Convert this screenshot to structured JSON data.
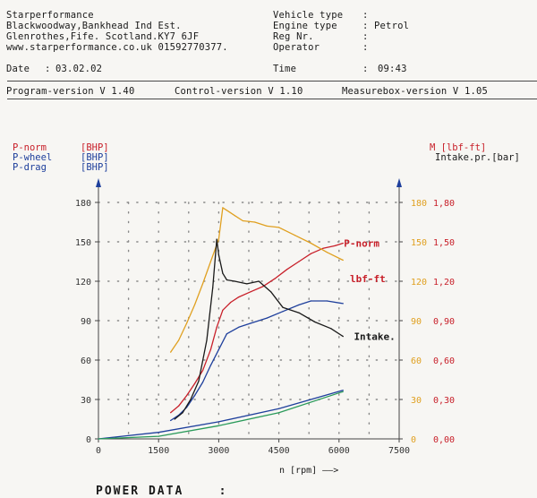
{
  "header": {
    "company": "Starperformance",
    "address": "Blackwoodway,Bankhead Ind Est.",
    "city": "Glenrothes,Fife. Scotland.KY7 6JF",
    "web_phone": "www.starperformance.co.uk 01592770377.",
    "date_label": "Date",
    "date_value": "03.02.02",
    "vehicle_type_label": "Vehicle type",
    "vehicle_type_value": "",
    "engine_type_label": "Engine type",
    "engine_type_value": "Petrol",
    "reg_label": "Reg Nr.",
    "reg_value": "",
    "operator_label": "Operator",
    "operator_value": "",
    "time_label": "Time",
    "time_value": "09:43"
  },
  "versions": {
    "program": "Program-version V 1.40",
    "control": "Control-version V 1.10",
    "measurebox": "Measurebox-version V 1.05"
  },
  "legend_left": [
    {
      "name": "P-norm",
      "unit": "[BHP]",
      "color": "#c8202a"
    },
    {
      "name": "P-wheel",
      "unit": "[BHP]",
      "color": "#1e3f9c"
    },
    {
      "name": "P-drag",
      "unit": "[BHP]",
      "color": "#1e3f9c"
    }
  ],
  "legend_right": [
    {
      "name": "M [lbf-ft]",
      "color": "#c8202a"
    },
    {
      "name": "Intake.pr.[bar]",
      "color": "#1a1a1a"
    }
  ],
  "footer": {
    "title": "POWER DATA",
    "colon": ":"
  },
  "colors": {
    "red": "#c8202a",
    "blue": "#1e3f9c",
    "orange": "#e0a020",
    "black": "#1a1a1a",
    "green": "#2a9a5a"
  },
  "chart_data": {
    "type": "line",
    "xlabel": "n [rpm] ——>",
    "xlim": [
      0,
      7500
    ],
    "x_ticks": [
      0,
      1500,
      3000,
      4500,
      6000,
      7500
    ],
    "ylim_left": [
      0,
      180
    ],
    "y_ticks_left": [
      0,
      30,
      60,
      90,
      120,
      150,
      180
    ],
    "y_ticks_right_torque": [
      0,
      30,
      60,
      90,
      120,
      150,
      180
    ],
    "y_ticks_right_intake": [
      "0,00",
      "0,30",
      "0,60",
      "0,90",
      "1,20",
      "1,50",
      "1,80"
    ],
    "grid": true,
    "annotations": [
      {
        "text": "P-norm",
        "x": 6300,
        "y": 149,
        "color": "#c8202a"
      },
      {
        "text": "lbf-ft",
        "x": 6450,
        "y": 122,
        "color": "#c8202a"
      },
      {
        "text": "Intake.",
        "x": 6550,
        "y": 78,
        "color": "#1a1a1a"
      }
    ],
    "series": [
      {
        "name": "P-norm",
        "axis": "left",
        "color": "#c8202a",
        "x": [
          1800,
          2000,
          2200,
          2400,
          2600,
          2800,
          2950,
          3100,
          3300,
          3500,
          3800,
          4100,
          4400,
          4700,
          5000,
          5300,
          5600,
          5900,
          6100
        ],
        "y": [
          20,
          25,
          33,
          42,
          52,
          68,
          85,
          98,
          104,
          108,
          112,
          116,
          122,
          129,
          135,
          141,
          145,
          147,
          149
        ]
      },
      {
        "name": "P-wheel",
        "axis": "left",
        "color": "#1e3f9c",
        "x": [
          1800,
          2000,
          2200,
          2400,
          2600,
          2800,
          3000,
          3200,
          3500,
          3800,
          4200,
          4600,
          5000,
          5300,
          5700,
          6100
        ],
        "y": [
          14,
          18,
          24,
          33,
          43,
          56,
          68,
          80,
          85,
          88,
          92,
          97,
          102,
          105,
          105,
          103
        ]
      },
      {
        "name": "P-drag",
        "axis": "left",
        "color": "#1e3f9c",
        "x": [
          0,
          1500,
          3000,
          4500,
          6100
        ],
        "y": [
          0,
          5,
          13,
          23,
          37
        ]
      },
      {
        "name": "M",
        "axis": "right",
        "color": "#e0a020",
        "x": [
          1800,
          2000,
          2200,
          2400,
          2600,
          2800,
          3000,
          3100,
          3200,
          3400,
          3600,
          3900,
          4200,
          4500,
          4900,
          5300,
          5700,
          6100
        ],
        "y": [
          66,
          75,
          88,
          102,
          118,
          135,
          152,
          176,
          174,
          170,
          166,
          165,
          162,
          161,
          155,
          149,
          142,
          136
        ]
      },
      {
        "name": "Intake",
        "axis": "right",
        "color": "#1a1a1a",
        "x": [
          1900,
          2100,
          2300,
          2500,
          2700,
          2850,
          2950,
          3000,
          3100,
          3200,
          3400,
          3700,
          4000,
          4300,
          4600,
          5000,
          5400,
          5800,
          6100
        ],
        "y": [
          15,
          20,
          30,
          44,
          75,
          115,
          152,
          140,
          126,
          121,
          120,
          118,
          120,
          112,
          100,
          96,
          89,
          84,
          78
        ]
      },
      {
        "name": "green",
        "axis": "left",
        "color": "#2a9a5a",
        "x": [
          0,
          1500,
          3000,
          4500,
          6100
        ],
        "y": [
          0,
          2,
          10,
          20,
          36
        ]
      }
    ]
  }
}
